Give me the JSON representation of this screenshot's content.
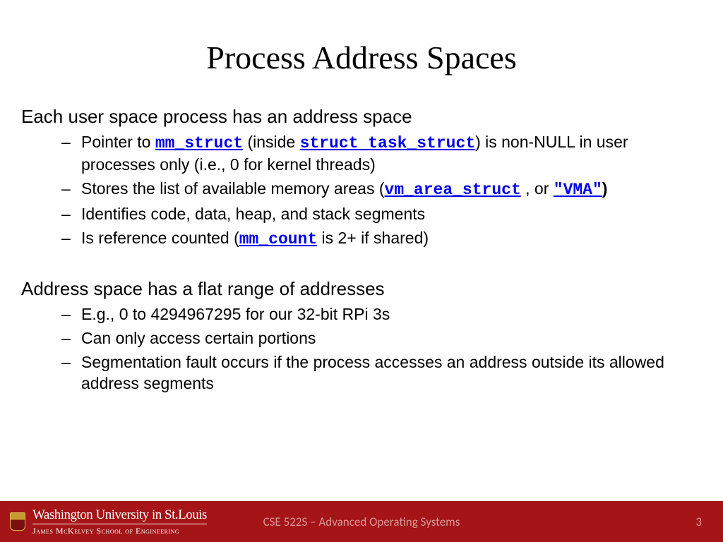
{
  "title": "Process Address Spaces",
  "section1": {
    "heading": "Each user space process has an address space",
    "items": [
      {
        "pre": "Pointer to ",
        "code1": "mm_struct",
        "mid1": " (inside ",
        "code2": "struct task_struct",
        "post": ") is non-NULL in user processes only (i.e., 0 for kernel threads)"
      },
      {
        "pre": "Stores the list of available memory areas (",
        "code1": "vm_area_struct",
        "mid1": " , or ",
        "code2": "\"VMA\"",
        "post": ")"
      },
      {
        "text": "Identifies code, data, heap, and stack segments"
      },
      {
        "pre": "Is reference counted (",
        "code1": "mm_count",
        "post": " is 2+ if shared)"
      }
    ]
  },
  "section2": {
    "heading": "Address space has a flat range of addresses",
    "items": [
      {
        "text": "E.g., 0 to 4294967295 for our 32-bit RPi 3s"
      },
      {
        "text": "Can only access certain portions"
      },
      {
        "text": "Segmentation fault occurs if the process accesses an address outside its allowed address segments"
      }
    ]
  },
  "footer": {
    "university_line1": "Washington University in St.Louis",
    "university_line2": "James McKelvey School of Engineering",
    "course": "CSE 522S – Advanced Operating Systems",
    "page": "3"
  },
  "colors": {
    "code_color": "#0000ee",
    "footer_bg": "#a51417",
    "footer_muted": "#d99597",
    "text": "#000000",
    "bg": "#ffffff"
  }
}
